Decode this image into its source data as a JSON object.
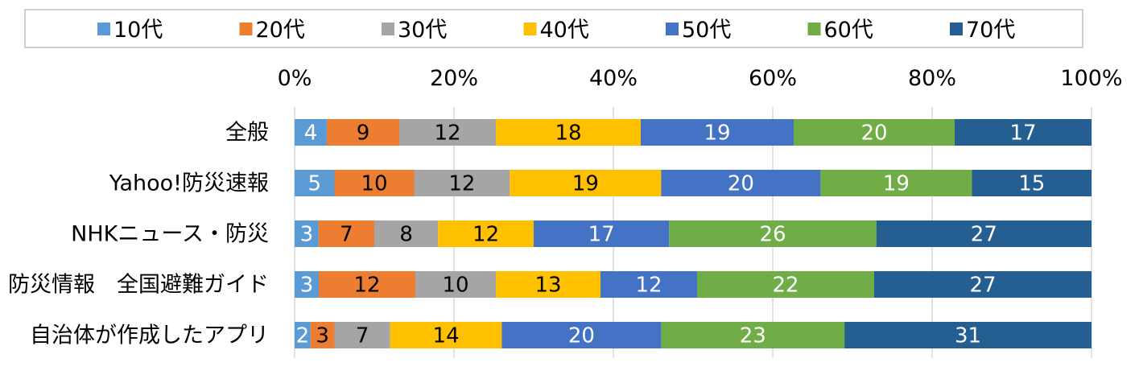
{
  "chart_data": {
    "type": "bar",
    "orientation": "horizontal",
    "stacked": true,
    "percent": true,
    "categories": [
      "全般",
      "Yahoo!防災速報",
      "NHKニュース・防災",
      "防災情報　全国避難ガイド",
      "自治体が作成したアプリ"
    ],
    "x_ticks": [
      "0%",
      "20%",
      "40%",
      "60%",
      "80%",
      "100%"
    ],
    "xlim": [
      0,
      100
    ],
    "grid": true,
    "legend_position": "top",
    "series": [
      {
        "name": "10代",
        "color": "#5b9bd5",
        "values": [
          4,
          5,
          3,
          3,
          2
        ],
        "label_color": "#ffffff"
      },
      {
        "name": "20代",
        "color": "#ed7d31",
        "values": [
          9,
          10,
          7,
          12,
          3
        ],
        "label_color": "#000000"
      },
      {
        "name": "30代",
        "color": "#a5a5a5",
        "values": [
          12,
          12,
          8,
          10,
          7
        ],
        "label_color": "#000000"
      },
      {
        "name": "40代",
        "color": "#ffc000",
        "values": [
          18,
          19,
          12,
          13,
          14
        ],
        "label_color": "#000000"
      },
      {
        "name": "50代",
        "color": "#4472c4",
        "values": [
          19,
          20,
          17,
          12,
          20
        ],
        "label_color": "#ffffff"
      },
      {
        "name": "60代",
        "color": "#70ad47",
        "values": [
          20,
          19,
          26,
          22,
          23
        ],
        "label_color": "#ffffff"
      },
      {
        "name": "70代",
        "color": "#255e91",
        "values": [
          17,
          15,
          27,
          27,
          31
        ],
        "label_color": "#ffffff"
      }
    ]
  }
}
